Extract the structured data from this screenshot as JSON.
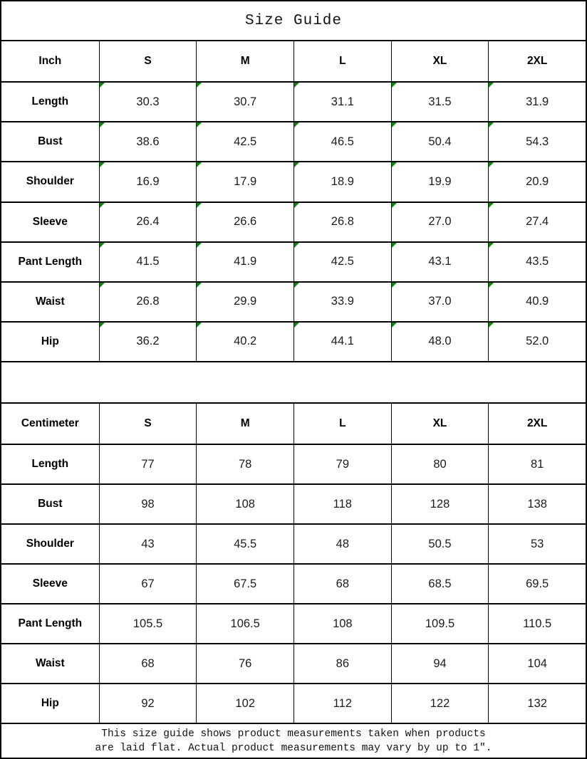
{
  "title": "Size Guide",
  "colors": {
    "border": "#000000",
    "background": "#ffffff",
    "cell_flag_green": "#028a02"
  },
  "tables": [
    {
      "name": "inch",
      "unit_label": "Inch",
      "size_headers": [
        "S",
        "M",
        "L",
        "XL",
        "2XL"
      ],
      "cell_flag": true,
      "rows": [
        {
          "label": "Length",
          "values": [
            "30.3",
            "30.7",
            "31.1",
            "31.5",
            "31.9"
          ]
        },
        {
          "label": "Bust",
          "values": [
            "38.6",
            "42.5",
            "46.5",
            "50.4",
            "54.3"
          ]
        },
        {
          "label": "Shoulder",
          "values": [
            "16.9",
            "17.9",
            "18.9",
            "19.9",
            "20.9"
          ]
        },
        {
          "label": "Sleeve",
          "values": [
            "26.4",
            "26.6",
            "26.8",
            "27.0",
            "27.4"
          ]
        },
        {
          "label": "Pant Length",
          "values": [
            "41.5",
            "41.9",
            "42.5",
            "43.1",
            "43.5"
          ]
        },
        {
          "label": "Waist",
          "values": [
            "26.8",
            "29.9",
            "33.9",
            "37.0",
            "40.9"
          ]
        },
        {
          "label": "Hip",
          "values": [
            "36.2",
            "40.2",
            "44.1",
            "48.0",
            "52.0"
          ]
        }
      ]
    },
    {
      "name": "centimeter",
      "unit_label": "Centimeter",
      "size_headers": [
        "S",
        "M",
        "L",
        "XL",
        "2XL"
      ],
      "cell_flag": false,
      "rows": [
        {
          "label": "Length",
          "values": [
            "77",
            "78",
            "79",
            "80",
            "81"
          ]
        },
        {
          "label": "Bust",
          "values": [
            "98",
            "108",
            "118",
            "128",
            "138"
          ]
        },
        {
          "label": "Shoulder",
          "values": [
            "43",
            "45.5",
            "48",
            "50.5",
            "53"
          ]
        },
        {
          "label": "Sleeve",
          "values": [
            "67",
            "67.5",
            "68",
            "68.5",
            "69.5"
          ]
        },
        {
          "label": "Pant Length",
          "values": [
            "105.5",
            "106.5",
            "108",
            "109.5",
            "110.5"
          ]
        },
        {
          "label": "Waist",
          "values": [
            "68",
            "76",
            "86",
            "94",
            "104"
          ]
        },
        {
          "label": "Hip",
          "values": [
            "92",
            "102",
            "112",
            "122",
            "132"
          ]
        }
      ]
    }
  ],
  "footnote": {
    "line1": "This size guide shows product measurements taken when products",
    "line2": "are laid flat. Actual product measurements may vary by up to 1″."
  }
}
